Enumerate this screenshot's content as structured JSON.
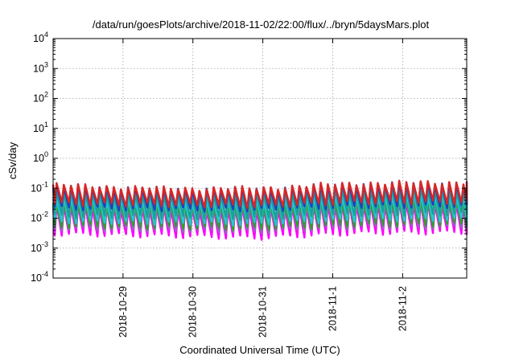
{
  "chart_data": {
    "type": "line",
    "title": "/data/run/goesPlots/archive/2018-11-02/22:00/flux/../bryn/5daysMars.plot",
    "xlabel": "Coordinated Universal Time (UTC)",
    "ylabel": "cSv/day",
    "yscale": "log",
    "ylim": [
      0.0001,
      10000
    ],
    "xlim": [
      "2018-10-28T00:00",
      "2018-11-02T22:00"
    ],
    "grid": true,
    "legend": "none",
    "y_ticks": [
      {
        "base": "10",
        "exp": "-4",
        "value": 0.0001
      },
      {
        "base": "10",
        "exp": "-3",
        "value": 0.001
      },
      {
        "base": "10",
        "exp": "-2",
        "value": 0.01
      },
      {
        "base": "10",
        "exp": "-1",
        "value": 0.1
      },
      {
        "base": "10",
        "exp": "0",
        "value": 1
      },
      {
        "base": "10",
        "exp": "1",
        "value": 10
      },
      {
        "base": "10",
        "exp": "2",
        "value": 100
      },
      {
        "base": "10",
        "exp": "3",
        "value": 1000
      },
      {
        "base": "10",
        "exp": "4",
        "value": 10000
      }
    ],
    "x_ticks": [
      {
        "label": "2018-10-29",
        "value": "2018-10-29T00:00"
      },
      {
        "label": "2018-10-30",
        "value": "2018-10-30T00:00"
      },
      {
        "label": "2018-10-31",
        "value": "2018-10-31T00:00"
      },
      {
        "label": "2018-11-1",
        "value": "2018-11-01T00:00"
      },
      {
        "label": "2018-11-2",
        "value": "2018-11-02T00:00"
      }
    ],
    "cycle_hours": 2.45,
    "series": [
      {
        "color": "#d62728",
        "peak": [
          0.13,
          0.1,
          0.1,
          0.15,
          0.16
        ],
        "trough": [
          0.03,
          0.028,
          0.025,
          0.034,
          0.034
        ]
      },
      {
        "color": "#1f3fbf",
        "peak": [
          0.12,
          0.095,
          0.095,
          0.14,
          0.15
        ],
        "trough": [
          0.022,
          0.02,
          0.019,
          0.025,
          0.026
        ]
      },
      {
        "color": "#1aa09a",
        "peak": [
          0.08,
          0.065,
          0.065,
          0.095,
          0.1
        ],
        "trough": [
          0.012,
          0.011,
          0.01,
          0.014,
          0.014
        ]
      },
      {
        "color": "#26c6da",
        "peak": [
          0.05,
          0.042,
          0.042,
          0.06,
          0.065
        ],
        "trough": [
          0.008,
          0.007,
          0.0065,
          0.009,
          0.009
        ]
      },
      {
        "color": "#2ca02c",
        "peak": [
          0.035,
          0.03,
          0.03,
          0.042,
          0.045
        ],
        "trough": [
          0.0055,
          0.005,
          0.0045,
          0.006,
          0.0062
        ]
      },
      {
        "color": "#9467bd",
        "peak": [
          0.03,
          0.025,
          0.025,
          0.035,
          0.037
        ],
        "trough": [
          0.0045,
          0.004,
          0.0036,
          0.005,
          0.005
        ]
      },
      {
        "color": "#ff00ff",
        "peak": [
          0.025,
          0.021,
          0.021,
          0.03,
          0.032
        ],
        "trough": [
          0.003,
          0.0026,
          0.0022,
          0.0032,
          0.0034
        ]
      }
    ]
  }
}
